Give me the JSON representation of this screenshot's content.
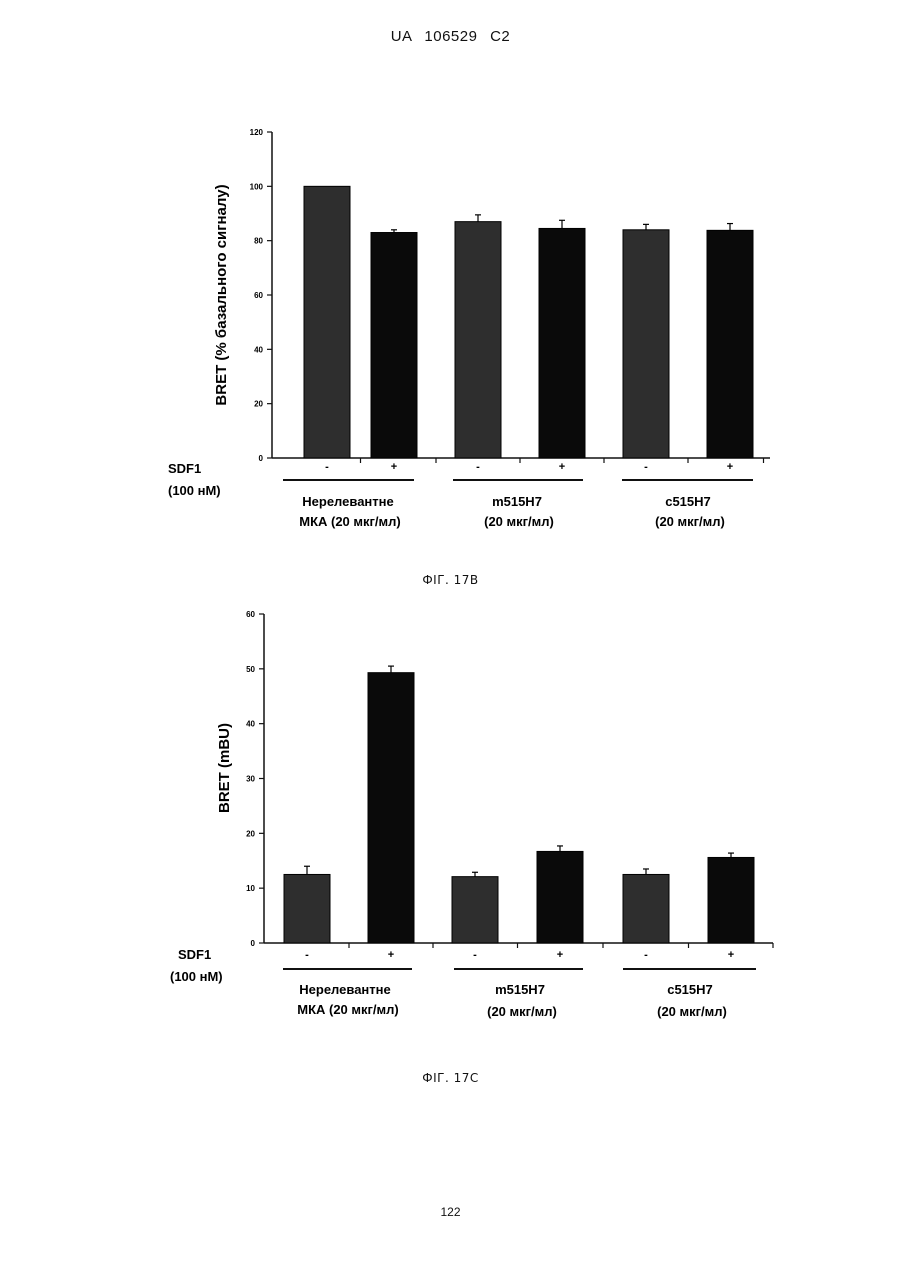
{
  "page": {
    "header": "UA   106529   C2",
    "page_number": "122"
  },
  "charts": [
    {
      "caption": "ФІГ. 17В",
      "y_axis_label": "BRET (% базального сигналу)",
      "sdf_label": "SDF1",
      "concentration_label": "(100 нМ)",
      "signs": [
        "-",
        "+",
        "-",
        "+",
        "-",
        "+"
      ],
      "groups": [
        {
          "line1": "Нерелевантне",
          "line2": "МКА (20 мкг/мл)"
        },
        {
          "line1": "m515H7",
          "line2": "(20 мкг/мл)"
        },
        {
          "line1": "c515H7",
          "line2": "(20 мкг/мл)"
        }
      ],
      "y_ticks": [
        "0",
        "20",
        "40",
        "60",
        "80",
        "100",
        "120"
      ]
    },
    {
      "caption": "ФІГ. 17С",
      "y_axis_label": "BRET (mBU)",
      "sdf_label": "SDF1",
      "concentration_label": "(100 нМ)",
      "signs": [
        "-",
        "+",
        "-",
        "+",
        "-",
        "+"
      ],
      "groups": [
        {
          "line1": "Нерелевантне",
          "line2": "МКА (20 мкг/мл)"
        },
        {
          "line1": "m515H7",
          "line2": "(20 мкг/мл)"
        },
        {
          "line1": "c515H7",
          "line2": "(20 мкг/мл)"
        }
      ],
      "y_ticks": [
        "0",
        "10",
        "20",
        "30",
        "40",
        "50",
        "60"
      ]
    }
  ],
  "chart_data": [
    {
      "type": "bar",
      "categories": [
        "-",
        "+",
        "-",
        "+",
        "-",
        "+"
      ],
      "values": [
        100,
        83,
        87,
        84.5,
        84,
        83.8
      ],
      "errors": [
        0,
        1,
        2.5,
        3,
        2,
        2.5
      ],
      "ylabel": "BRET (% базального сигналу)",
      "ylim": [
        0,
        120
      ],
      "y_ticks": [
        0,
        20,
        40,
        60,
        80,
        100,
        120
      ],
      "bar_colors": [
        "#2e2e2e",
        "#0a0a0a",
        "#2e2e2e",
        "#0a0a0a",
        "#2e2e2e",
        "#0a0a0a"
      ],
      "grid": false
    },
    {
      "type": "bar",
      "categories": [
        "-",
        "+",
        "-",
        "+",
        "-",
        "+"
      ],
      "values": [
        12.5,
        49.3,
        12.1,
        16.7,
        12.5,
        15.6
      ],
      "errors": [
        1.5,
        1.2,
        0.8,
        1.0,
        1.0,
        0.8
      ],
      "ylabel": "BRET (mBU)",
      "ylim": [
        0,
        60
      ],
      "y_ticks": [
        0,
        10,
        20,
        30,
        40,
        50,
        60
      ],
      "bar_colors": [
        "#2e2e2e",
        "#0a0a0a",
        "#2e2e2e",
        "#0a0a0a",
        "#2e2e2e",
        "#0a0a0a"
      ],
      "grid": false
    }
  ]
}
